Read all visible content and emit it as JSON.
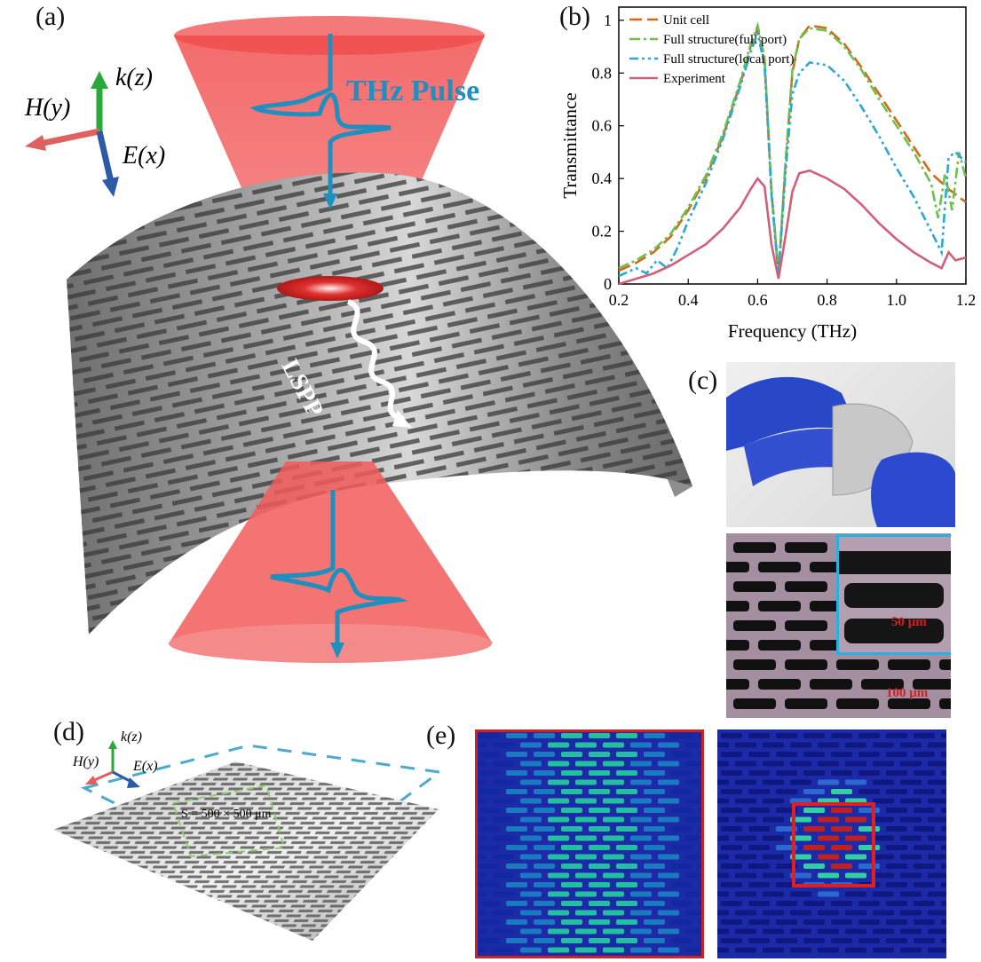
{
  "figure": {
    "panel_labels": {
      "a": "(a)",
      "b": "(b)",
      "c": "(c)",
      "d": "(d)",
      "e": "(e)"
    },
    "panel_a": {
      "axes": {
        "k": "k(z)",
        "h": "H(y)",
        "e": "E(x)"
      },
      "pulse_label": "THz Pulse",
      "lspp_label": "LSPP"
    },
    "panel_c": {
      "scale_inset": "50 μm",
      "scale_main": "100 μm"
    },
    "panel_d": {
      "axes": {
        "k": "k(z)",
        "h": "H(y)",
        "e": "E(x)"
      },
      "area_label": "S = 500 × 500 μm"
    },
    "colors": {
      "unit_cell": "#d2691e",
      "full_port": "#6cc24a",
      "local_port": "#2aa8d8",
      "experiment": "#d0607a",
      "beam": "#f04848",
      "pulse": "#1f8fc0"
    }
  },
  "chart_data": {
    "type": "line",
    "xlabel": "Frequency (THz)",
    "ylabel": "Transmittance",
    "xlim": [
      0.2,
      1.2
    ],
    "ylim": [
      0,
      1.05
    ],
    "xticks": [
      "0.2",
      "0.4",
      "0.6",
      "0.8",
      "1.0",
      "1.2"
    ],
    "yticks": [
      "0",
      "0.2",
      "0.4",
      "0.6",
      "0.8",
      "1"
    ],
    "legend_position": "top-left",
    "series": [
      {
        "name": "Unit cell",
        "style": "dash",
        "color": "#d2691e",
        "x": [
          0.2,
          0.25,
          0.3,
          0.35,
          0.4,
          0.45,
          0.5,
          0.55,
          0.58,
          0.6,
          0.62,
          0.64,
          0.66,
          0.68,
          0.7,
          0.72,
          0.75,
          0.8,
          0.85,
          0.9,
          0.95,
          1.0,
          1.05,
          1.1,
          1.15,
          1.2
        ],
        "y": [
          0.05,
          0.08,
          0.12,
          0.18,
          0.28,
          0.4,
          0.56,
          0.76,
          0.9,
          0.97,
          0.85,
          0.35,
          0.03,
          0.45,
          0.8,
          0.93,
          0.98,
          0.97,
          0.91,
          0.82,
          0.72,
          0.62,
          0.52,
          0.42,
          0.36,
          0.31
        ]
      },
      {
        "name": "Full structure(full port)",
        "style": "dashdot",
        "color": "#6cc24a",
        "x": [
          0.2,
          0.25,
          0.3,
          0.35,
          0.4,
          0.45,
          0.5,
          0.55,
          0.58,
          0.6,
          0.62,
          0.64,
          0.66,
          0.68,
          0.7,
          0.72,
          0.75,
          0.8,
          0.85,
          0.9,
          0.95,
          1.0,
          1.05,
          1.1,
          1.12,
          1.14,
          1.16,
          1.18,
          1.2
        ],
        "y": [
          0.06,
          0.09,
          0.13,
          0.19,
          0.29,
          0.41,
          0.57,
          0.77,
          0.91,
          0.98,
          0.86,
          0.36,
          0.04,
          0.46,
          0.81,
          0.93,
          0.97,
          0.96,
          0.9,
          0.81,
          0.7,
          0.6,
          0.5,
          0.38,
          0.25,
          0.42,
          0.28,
          0.5,
          0.4
        ]
      },
      {
        "name": "Full structure(local port)",
        "style": "dashdotdot",
        "color": "#2aa8d8",
        "x": [
          0.2,
          0.25,
          0.28,
          0.31,
          0.34,
          0.37,
          0.4,
          0.45,
          0.5,
          0.55,
          0.58,
          0.6,
          0.62,
          0.64,
          0.66,
          0.68,
          0.7,
          0.72,
          0.75,
          0.8,
          0.85,
          0.9,
          0.95,
          1.0,
          1.05,
          1.1,
          1.13,
          1.15,
          1.17,
          1.2
        ],
        "y": [
          0.03,
          0.06,
          0.04,
          0.09,
          0.06,
          0.14,
          0.24,
          0.38,
          0.55,
          0.75,
          0.88,
          0.95,
          0.83,
          0.34,
          0.03,
          0.42,
          0.72,
          0.8,
          0.84,
          0.83,
          0.77,
          0.67,
          0.56,
          0.44,
          0.33,
          0.2,
          0.12,
          0.48,
          0.5,
          0.46
        ]
      },
      {
        "name": "Experiment",
        "style": "solid",
        "color": "#d0607a",
        "x": [
          0.2,
          0.25,
          0.3,
          0.35,
          0.4,
          0.45,
          0.5,
          0.55,
          0.58,
          0.6,
          0.62,
          0.64,
          0.66,
          0.68,
          0.7,
          0.72,
          0.75,
          0.8,
          0.85,
          0.9,
          0.95,
          1.0,
          1.05,
          1.1,
          1.13,
          1.15,
          1.17,
          1.2
        ],
        "y": [
          0.0,
          0.02,
          0.04,
          0.07,
          0.11,
          0.15,
          0.21,
          0.29,
          0.36,
          0.4,
          0.37,
          0.15,
          0.02,
          0.18,
          0.35,
          0.42,
          0.43,
          0.4,
          0.36,
          0.3,
          0.23,
          0.17,
          0.12,
          0.08,
          0.06,
          0.12,
          0.09,
          0.1
        ]
      }
    ]
  }
}
